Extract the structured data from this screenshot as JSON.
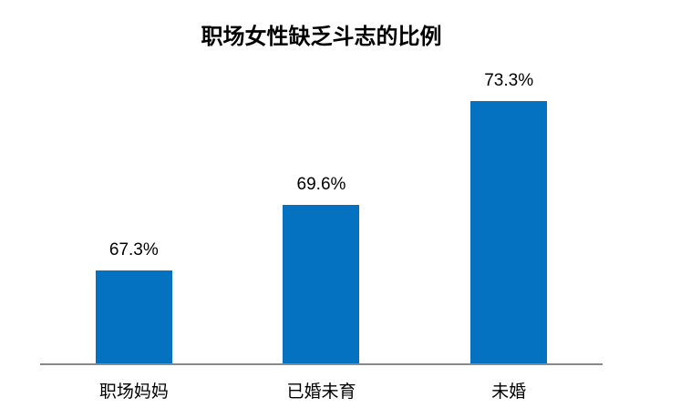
{
  "chart_data": {
    "type": "bar",
    "title": "职场女性缺乏斗志的比例",
    "categories": [
      "职场妈妈",
      "已婚未育",
      "未婚"
    ],
    "values": [
      67.3,
      69.6,
      73.3
    ],
    "value_labels": [
      "67.3%",
      "69.6%",
      "73.3%"
    ],
    "xlabel": "",
    "ylabel": "",
    "ylim": [
      64,
      74
    ],
    "grid": false,
    "legend": "none",
    "axis_ticks_visible": false,
    "bar_color": "#0572C1",
    "axis_line_color": "#898989",
    "text_color": "#000000",
    "background_color": "#ffffff"
  }
}
